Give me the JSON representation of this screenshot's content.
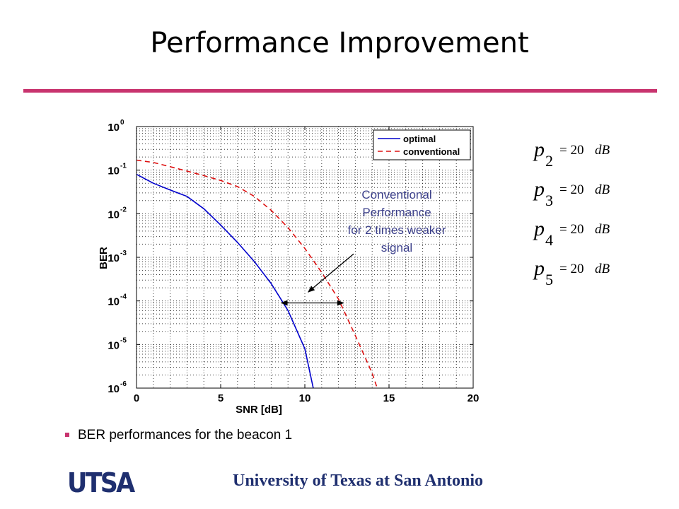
{
  "slide": {
    "title": "Performance Improvement",
    "accent_color": "#c8336e",
    "bullet_text": "BER performances for the beacon 1",
    "bullet_color": "#c8336e",
    "footer_text": "University of Texas at San Antonio",
    "footer_color": "#1f2f6f",
    "logo_text": "UTSA",
    "logo_color": "#1f2f6f"
  },
  "equations": [
    {
      "symbol": "p",
      "subscript": "2",
      "rhs": "= 20",
      "unit": "dB"
    },
    {
      "symbol": "p",
      "subscript": "3",
      "rhs": "= 20",
      "unit": "dB"
    },
    {
      "symbol": "p",
      "subscript": "4",
      "rhs": "= 20",
      "unit": "dB"
    },
    {
      "symbol": "p",
      "subscript": "5",
      "rhs": "= 20",
      "unit": "dB"
    }
  ],
  "chart_data": {
    "type": "line",
    "xlabel": "SNR [dB]",
    "ylabel": "BER",
    "xlim": [
      0,
      20
    ],
    "ylim": [
      1e-06,
      1
    ],
    "y_scale": "log",
    "grid": true,
    "grid_style": "dotted",
    "x_ticks": [
      0,
      5,
      10,
      15,
      20
    ],
    "y_ticks": [
      {
        "value": 1,
        "base": "10",
        "exp": "0"
      },
      {
        "value": 0.1,
        "base": "10",
        "exp": "-1"
      },
      {
        "value": 0.01,
        "base": "10",
        "exp": "-2"
      },
      {
        "value": 0.001,
        "base": "10",
        "exp": "-3"
      },
      {
        "value": 0.0001,
        "base": "10",
        "exp": "-4"
      },
      {
        "value": 1e-05,
        "base": "10",
        "exp": "-5"
      },
      {
        "value": 1e-06,
        "base": "10",
        "exp": "-6"
      }
    ],
    "legend_position": "top-right",
    "series": [
      {
        "name": "optimal",
        "color": "#0000cc",
        "dash": "solid",
        "points": [
          [
            0,
            0.08
          ],
          [
            1,
            0.05
          ],
          [
            2,
            0.035
          ],
          [
            3,
            0.025
          ],
          [
            4,
            0.013
          ],
          [
            5,
            0.0055
          ],
          [
            6,
            0.0022
          ],
          [
            7,
            0.0008
          ],
          [
            8,
            0.00025
          ],
          [
            9,
            6e-05
          ],
          [
            10,
            8e-06
          ],
          [
            10.5,
            1e-06
          ]
        ]
      },
      {
        "name": "conventional",
        "color": "#dd1111",
        "dash": "dashed",
        "points": [
          [
            0,
            0.17
          ],
          [
            1,
            0.15
          ],
          [
            2,
            0.12
          ],
          [
            3,
            0.095
          ],
          [
            4,
            0.075
          ],
          [
            5,
            0.058
          ],
          [
            6,
            0.042
          ],
          [
            7,
            0.025
          ],
          [
            8,
            0.012
          ],
          [
            9,
            0.0048
          ],
          [
            10,
            0.0016
          ],
          [
            11,
            0.00045
          ],
          [
            12,
            0.00011
          ],
          [
            13,
            1.6e-05
          ],
          [
            14,
            2.2e-06
          ],
          [
            14.3,
            1e-06
          ]
        ]
      }
    ],
    "annotation": {
      "lines": [
        "Conventional",
        "Performance",
        "for 2 times weaker",
        "signal"
      ],
      "color": "#3b3f8a",
      "double_arrow": {
        "y": 9e-05,
        "x1": 8.6,
        "x2": 12.3
      },
      "pointer_arrow": {
        "from_x": 12.9,
        "from_y": 0.0012,
        "to_x": 10.2,
        "to_y": 0.00016
      }
    }
  }
}
